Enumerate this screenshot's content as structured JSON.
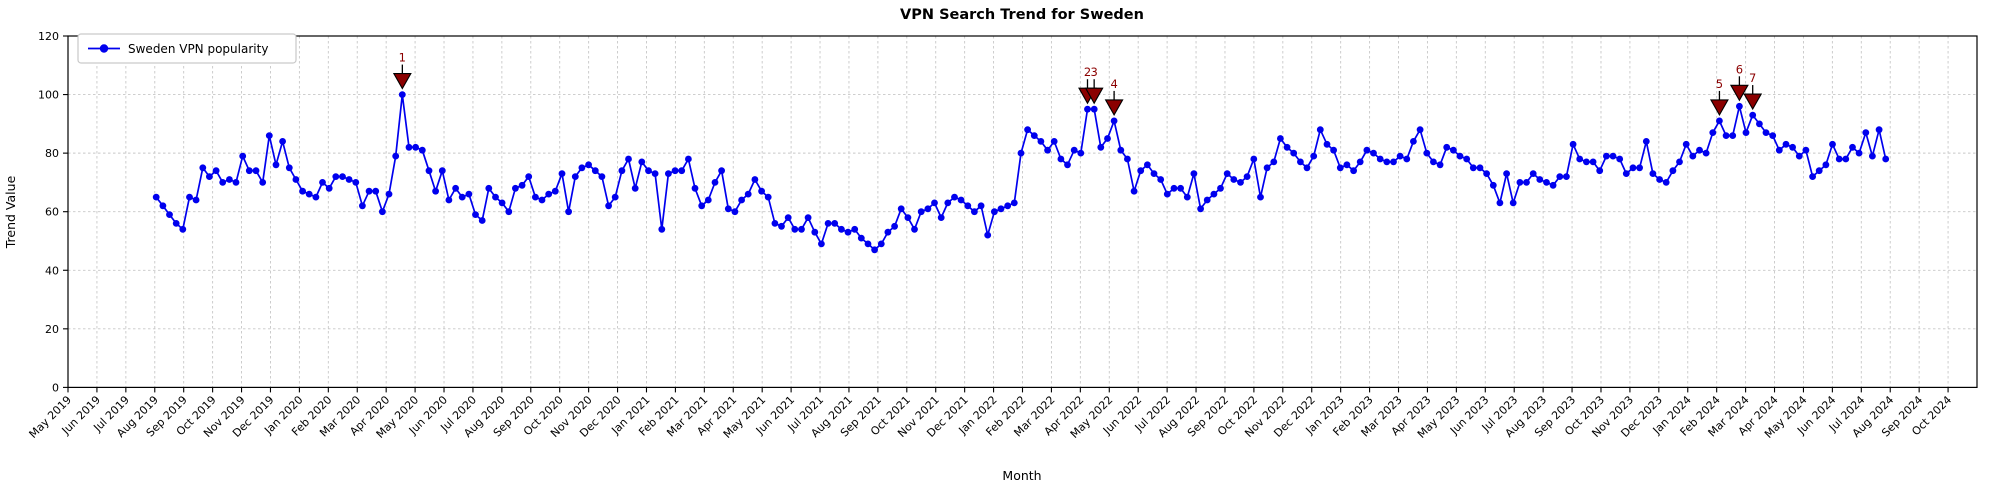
{
  "chart_data": {
    "type": "line",
    "title": "VPN Search Trend for Sweden",
    "xlabel": "Month",
    "ylabel": "Trend Value",
    "ylim": [
      0,
      120
    ],
    "yticks": [
      0,
      20,
      40,
      60,
      80,
      100,
      120
    ],
    "x_tick_labels": [
      "May 2019",
      "Jun 2019",
      "Jul 2019",
      "Aug 2019",
      "Sep 2019",
      "Oct 2019",
      "Nov 2019",
      "Dec 2019",
      "Jan 2020",
      "Feb 2020",
      "Mar 2020",
      "Apr 2020",
      "May 2020",
      "Jun 2020",
      "Jul 2020",
      "Aug 2020",
      "Sep 2020",
      "Oct 2020",
      "Nov 2020",
      "Dec 2020",
      "Jan 2021",
      "Feb 2021",
      "Mar 2021",
      "Apr 2021",
      "May 2021",
      "Jun 2021",
      "Jul 2021",
      "Aug 2021",
      "Sep 2021",
      "Oct 2021",
      "Nov 2021",
      "Dec 2021",
      "Jan 2022",
      "Feb 2022",
      "Mar 2022",
      "Apr 2022",
      "May 2022",
      "Jun 2022",
      "Jul 2022",
      "Aug 2022",
      "Sep 2022",
      "Oct 2022",
      "Nov 2022",
      "Dec 2022",
      "Jan 2023",
      "Feb 2023",
      "Mar 2023",
      "Apr 2023",
      "May 2023",
      "Jun 2023",
      "Jul 2023",
      "Aug 2023",
      "Sep 2023",
      "Oct 2023",
      "Nov 2023",
      "Dec 2023",
      "Jan 2024",
      "Feb 2024",
      "Mar 2024",
      "Apr 2024",
      "May 2024",
      "Jun 2024",
      "Jul 2024",
      "Aug 2024",
      "Sep 2024",
      "Oct 2024"
    ],
    "grid": {
      "visible": true,
      "style": "dashed"
    },
    "legend": {
      "position": "upper left",
      "entries": [
        {
          "label": "Sweden VPN popularity",
          "color": "#0000EE",
          "marker": "circle"
        }
      ]
    },
    "series": [
      {
        "name": "Sweden VPN popularity",
        "frequency": "weekly",
        "start": "Aug 2019",
        "end": "Aug 2024",
        "values": [
          65,
          62,
          59,
          56,
          54,
          65,
          64,
          75,
          72,
          74,
          70,
          71,
          70,
          79,
          74,
          74,
          70,
          86,
          76,
          84,
          75,
          71,
          67,
          66,
          65,
          70,
          68,
          72,
          72,
          71,
          70,
          62,
          67,
          67,
          60,
          66,
          79,
          100,
          82,
          82,
          81,
          74,
          67,
          74,
          64,
          68,
          65,
          66,
          59,
          57,
          68,
          65,
          63,
          60,
          68,
          69,
          72,
          65,
          64,
          66,
          67,
          73,
          60,
          72,
          75,
          76,
          74,
          72,
          62,
          65,
          74,
          78,
          68,
          77,
          74,
          73,
          54,
          73,
          74,
          74,
          78,
          68,
          62,
          64,
          70,
          74,
          61,
          60,
          64,
          66,
          71,
          67,
          65,
          56,
          55,
          58,
          54,
          54,
          58,
          53,
          49,
          56,
          56,
          54,
          53,
          54,
          51,
          49,
          47,
          49,
          53,
          55,
          61,
          58,
          54,
          60,
          61,
          63,
          58,
          63,
          65,
          64,
          62,
          60,
          62,
          52,
          60,
          61,
          62,
          63,
          80,
          88,
          86,
          84,
          81,
          84,
          78,
          76,
          81,
          80,
          95,
          95,
          82,
          85,
          91,
          81,
          78,
          67,
          74,
          76,
          73,
          71,
          66,
          68,
          68,
          65,
          73,
          61,
          64,
          66,
          68,
          73,
          71,
          70,
          72,
          78,
          65,
          75,
          77,
          85,
          82,
          80,
          77,
          75,
          79,
          88,
          83,
          81,
          75,
          76,
          74,
          77,
          81,
          80,
          78,
          77,
          77,
          79,
          78,
          84,
          88,
          80,
          77,
          76,
          82,
          81,
          79,
          78,
          75,
          75,
          73,
          69,
          63,
          73,
          63,
          70,
          70,
          73,
          71,
          70,
          69,
          72,
          72,
          83,
          78,
          77,
          77,
          74,
          79,
          79,
          78,
          73,
          75,
          75,
          84,
          73,
          71,
          70,
          74,
          77,
          83,
          79,
          81,
          80,
          87,
          91,
          86,
          86,
          96,
          87,
          93,
          90,
          87,
          86,
          81,
          83,
          82,
          79,
          81,
          72,
          74,
          76,
          83,
          78,
          78,
          82,
          80,
          87,
          79,
          88,
          78
        ]
      }
    ],
    "annotations": [
      {
        "label": "1",
        "week_index": 37,
        "value": 100,
        "approx_date": "Apr 2020"
      },
      {
        "label": "2",
        "week_index": 140,
        "value": 95,
        "approx_date": "Apr 2022"
      },
      {
        "label": "3",
        "week_index": 141,
        "value": 95,
        "approx_date": "Apr 2022"
      },
      {
        "label": "4",
        "week_index": 144,
        "value": 91,
        "approx_date": "May 2022"
      },
      {
        "label": "5",
        "week_index": 235,
        "value": 91,
        "approx_date": "Feb 2024"
      },
      {
        "label": "6",
        "week_index": 238,
        "value": 96,
        "approx_date": "Mar 2024"
      },
      {
        "label": "7",
        "week_index": 240,
        "value": 93,
        "approx_date": "Mar 2024"
      }
    ],
    "colors": {
      "line": "#0000EE",
      "marker": "#0000EE",
      "annotation_marker": "#8B0000",
      "annotation_text": "#8B0000",
      "grid": "#c7c7c7",
      "axis": "#000000",
      "background": "#ffffff"
    }
  }
}
